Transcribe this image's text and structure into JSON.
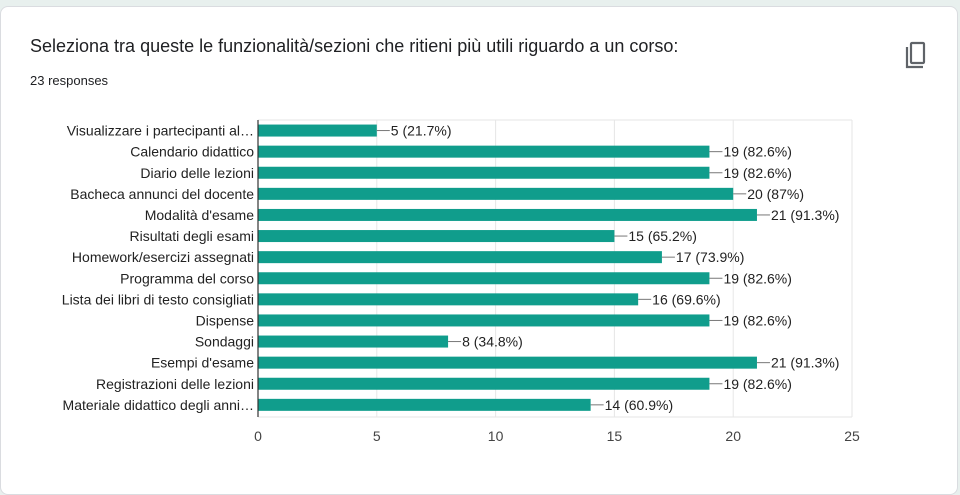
{
  "question": {
    "title": "Seleziona tra queste le funzionalità/sezioni che ritieni più utili riguardo a un corso:",
    "responses": "23 responses"
  },
  "icons": {
    "copy": "copy-icon"
  },
  "colors": {
    "bar": "#109d8c",
    "grid": "#e6e6e6",
    "axis": "#333333",
    "text": "#222222"
  },
  "chart_data": {
    "type": "bar",
    "orientation": "horizontal",
    "categories": [
      "Visualizzare i partecipanti al…",
      "Calendario didattico",
      "Diario delle lezioni",
      "Bacheca annunci del docente",
      "Modalità d'esame",
      "Risultati degli esami",
      "Homework/esercizi assegnati",
      "Programma del corso",
      "Lista dei libri di testo consigliati",
      "Dispense",
      "Sondaggi",
      "Esempi d'esame",
      "Registrazioni delle lezioni",
      "Materiale didattico degli anni…"
    ],
    "values": [
      5,
      19,
      19,
      20,
      21,
      15,
      17,
      19,
      16,
      19,
      8,
      21,
      19,
      14
    ],
    "labels": [
      "5 (21.7%)",
      "19 (82.6%)",
      "19 (82.6%)",
      "20 (87%)",
      "21 (91.3%)",
      "15 (65.2%)",
      "17 (73.9%)",
      "19 (82.6%)",
      "16 (69.6%)",
      "19 (82.6%)",
      "8 (34.8%)",
      "21 (91.3%)",
      "19 (82.6%)",
      "14 (60.9%)"
    ],
    "xticks": [
      "0",
      "5",
      "10",
      "15",
      "20",
      "25"
    ],
    "xlim": [
      0,
      25
    ],
    "grid": true
  }
}
